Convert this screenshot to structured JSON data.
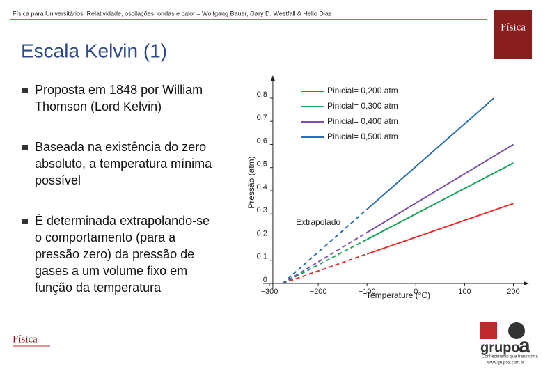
{
  "header": {
    "text": "Física para Universitários: Relatividade, oscilações, ondas e calor – Wolfgang Bauer, Gary D. Westfall & Helio Dias"
  },
  "title": "Escala Kelvin (1)",
  "bullets": [
    [
      "Proposta em 1848 por William",
      "Thomson (Lord Kelvin)"
    ],
    [
      "Baseada na existência do zero",
      "absoluto, a temperatura mínima",
      "possível"
    ],
    [
      "É determinada extrapolando-se",
      "o comportamento (para a",
      "pressão zero) da pressão de",
      "gases a um volume fixo em",
      "função da temperatura"
    ]
  ],
  "logos": {
    "cover": "Física",
    "bottom_left": "Física",
    "publisher": "grupo",
    "publisher_mark": "a",
    "slogan": "Conhecimento que transforma",
    "url": "www.grupoa.com.br"
  },
  "chart_data": {
    "type": "line",
    "xlabel": "Temperature (°C)",
    "ylabel": "Pressão (atm)",
    "annotation": "Extrapolado",
    "xlim": [
      -310,
      215
    ],
    "ylim": [
      0,
      0.86
    ],
    "xticks": [
      {
        "value": -300,
        "label": "−300"
      },
      {
        "value": -200,
        "label": "−200"
      },
      {
        "value": -100,
        "label": "−100"
      },
      0,
      100,
      200
    ],
    "yticks": [
      0,
      {
        "value": 0.1,
        "label": "0,1"
      },
      {
        "value": 0.2,
        "label": "0,2"
      },
      {
        "value": 0.3,
        "label": "0,3"
      },
      {
        "value": 0.4,
        "label": "0,4"
      },
      {
        "value": 0.5,
        "label": "0,5"
      },
      {
        "value": 0.6,
        "label": "0,6"
      },
      {
        "value": 0.7,
        "label": "0,7"
      },
      {
        "value": 0.8,
        "label": "0,8"
      }
    ],
    "dashed_segments": [
      0
    ],
    "series": [
      {
        "name": "Pinicial= 0,200 atm",
        "color": "#e8312f",
        "x": [
          -273,
          -100,
          200
        ],
        "values": [
          0,
          0.127,
          0.345
        ]
      },
      {
        "name": "Pinicial= 0,300 atm",
        "color": "#1aa55a",
        "x": [
          -273,
          -100,
          200
        ],
        "values": [
          0,
          0.19,
          0.52
        ]
      },
      {
        "name": "Pinicial= 0,400 atm",
        "color": "#7b52a8",
        "x": [
          -273,
          -100,
          200
        ],
        "values": [
          0,
          0.22,
          0.6
        ]
      },
      {
        "name": "Pinicial= 0,500 atm",
        "color": "#2a6db5",
        "x": [
          -273,
          -100,
          160
        ],
        "values": [
          0,
          0.32,
          0.8
        ]
      }
    ]
  }
}
